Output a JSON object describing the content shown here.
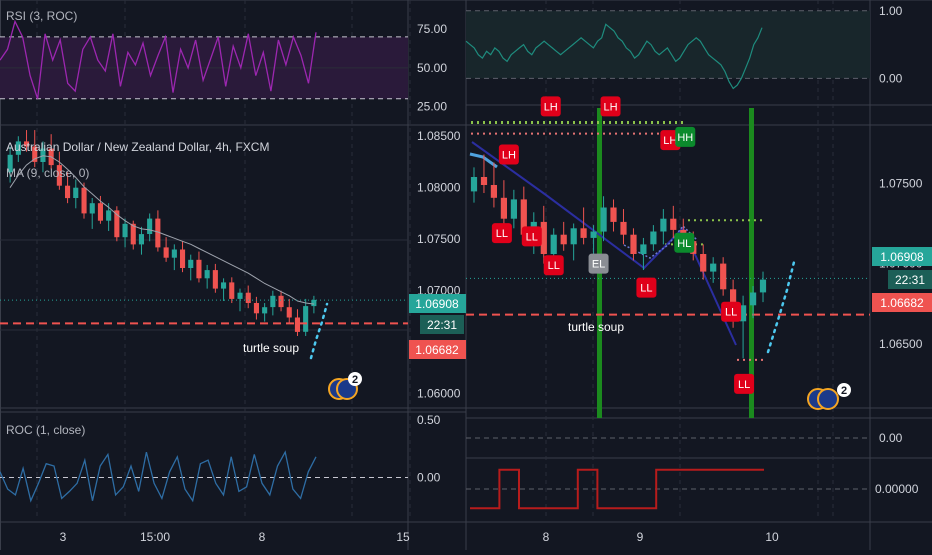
{
  "colors": {
    "bg": "#131722",
    "grid": "#2a2e39",
    "divider": "#3a3e4a",
    "bull": "#26a69a",
    "bear": "#ef5350",
    "text": "#b2b5be",
    "axis_text": "#d1d4dc",
    "rsi": "#9c27b0",
    "rsi_fill": "#2a1a3a",
    "roc": "#2e6da4",
    "price_tag": "#26a69a",
    "time_tag": "#1c5f57",
    "level_tag": "#ef5350",
    "ma": "#9ea3ad",
    "label_red": "#e0001a",
    "label_green": "#0b8a2c",
    "label_gray": "#8a8d94",
    "sky": "#4dc9f0",
    "trend": "#2b2ea0",
    "osc": "#b71c1c",
    "sig": "#26a69a",
    "mark_green": "#1b8a1e",
    "flag": "#f5a623"
  },
  "left": {
    "rsi": {
      "title": "RSI (3, ROC)",
      "ticks": [
        "75.00",
        "50.00",
        "25.00"
      ],
      "tick_values": [
        75,
        50,
        25
      ],
      "ylim": [
        15,
        90
      ],
      "band": [
        30,
        70
      ],
      "values": [
        55,
        62,
        80,
        70,
        45,
        30,
        72,
        55,
        68,
        40,
        35,
        62,
        70,
        55,
        48,
        72,
        38,
        60,
        52,
        66,
        45,
        58,
        70,
        34,
        62,
        50,
        68,
        42,
        56,
        70,
        38,
        64,
        50,
        72,
        45,
        60,
        35,
        68,
        52,
        70,
        58,
        40,
        73
      ]
    },
    "main": {
      "title": "Australian Dollar / New Zealand Dollar, 4h, FXCM",
      "ma_title": "MA (9, close, 0)",
      "ticks": [
        "1.08500",
        "1.08000",
        "1.07500",
        "1.07000",
        "1.06000"
      ],
      "tick_values": [
        1.085,
        1.08,
        1.075,
        1.07,
        1.06
      ],
      "ylim": [
        1.0588,
        1.0858
      ],
      "price_tag": "1.06908",
      "price_value": 1.06908,
      "time_tag": "22:31",
      "level_tag": "1.06682",
      "level_value": 1.06682,
      "annotation": "turtle soup",
      "badge": "2",
      "candles": [
        [
          1.0815,
          1.084,
          1.0805,
          1.0832
        ],
        [
          1.0832,
          1.085,
          1.0825,
          1.0845
        ],
        [
          1.0845,
          1.0856,
          1.0835,
          1.084
        ],
        [
          1.084,
          1.0856,
          1.082,
          1.0825
        ],
        [
          1.0825,
          1.0845,
          1.0815,
          1.0838
        ],
        [
          1.0838,
          1.0852,
          1.0818,
          1.0822
        ],
        [
          1.0822,
          1.0835,
          1.0798,
          1.0802
        ],
        [
          1.0802,
          1.0815,
          1.0785,
          1.079
        ],
        [
          1.079,
          1.0808,
          1.078,
          1.08
        ],
        [
          1.08,
          1.0805,
          1.077,
          1.0775
        ],
        [
          1.0775,
          1.079,
          1.076,
          1.0785
        ],
        [
          1.0785,
          1.0792,
          1.0765,
          1.0768
        ],
        [
          1.0768,
          1.0785,
          1.0758,
          1.0778
        ],
        [
          1.0778,
          1.0782,
          1.0748,
          1.0752
        ],
        [
          1.0752,
          1.077,
          1.0742,
          1.0765
        ],
        [
          1.0765,
          1.0768,
          1.074,
          1.0745
        ],
        [
          1.0745,
          1.0762,
          1.0735,
          1.0755
        ],
        [
          1.0755,
          1.0775,
          1.0748,
          1.077
        ],
        [
          1.077,
          1.0778,
          1.0738,
          1.0742
        ],
        [
          1.0742,
          1.0752,
          1.0728,
          1.0732
        ],
        [
          1.0732,
          1.0745,
          1.072,
          1.074
        ],
        [
          1.074,
          1.0748,
          1.0718,
          1.0722
        ],
        [
          1.0722,
          1.0735,
          1.071,
          1.073
        ],
        [
          1.073,
          1.0738,
          1.0708,
          1.0712
        ],
        [
          1.0712,
          1.0725,
          1.0702,
          1.072
        ],
        [
          1.072,
          1.0726,
          1.0698,
          1.0702
        ],
        [
          1.0702,
          1.0712,
          1.069,
          1.0708
        ],
        [
          1.0708,
          1.0713,
          1.0688,
          1.0692
        ],
        [
          1.0692,
          1.0702,
          1.068,
          1.0698
        ],
        [
          1.0698,
          1.0705,
          1.0683,
          1.0688
        ],
        [
          1.0688,
          1.0694,
          1.0672,
          1.0678
        ],
        [
          1.0678,
          1.0688,
          1.067,
          1.0684
        ],
        [
          1.0684,
          1.07,
          1.0676,
          1.0695
        ],
        [
          1.0695,
          1.07,
          1.068,
          1.0684
        ],
        [
          1.0684,
          1.0692,
          1.0668,
          1.0674
        ],
        [
          1.0674,
          1.0682,
          1.0656,
          1.066
        ],
        [
          1.066,
          1.0692,
          1.0656,
          1.0685
        ],
        [
          1.0685,
          1.0695,
          1.0678,
          1.0691
        ]
      ],
      "ma": [
        1.08,
        1.0812,
        1.0822,
        1.0828,
        1.0831,
        1.083,
        1.0825,
        1.0818,
        1.081,
        1.0801,
        1.0794,
        1.0787,
        1.0781,
        1.0774,
        1.0768,
        1.0763,
        1.076,
        1.0759,
        1.0757,
        1.0754,
        1.0751,
        1.0748,
        1.0745,
        1.0741,
        1.0737,
        1.0733,
        1.0729,
        1.0725,
        1.0721,
        1.0717,
        1.0712,
        1.0707,
        1.0703,
        1.0699,
        1.0695,
        1.069,
        1.0688,
        1.0687
      ]
    },
    "roc": {
      "title": "ROC (1, close)",
      "ticks": [
        "0.50",
        "0.00"
      ],
      "tick_values": [
        0.5,
        0.0
      ],
      "ylim": [
        -0.35,
        0.55
      ],
      "values": [
        0.05,
        -0.1,
        -0.15,
        0.08,
        -0.2,
        -0.05,
        0.12,
        0.1,
        -0.18,
        -0.12,
        -0.05,
        0.15,
        -0.2,
        0.1,
        0.2,
        -0.15,
        -0.08,
        0.1,
        -0.12,
        0.22,
        -0.05,
        -0.18,
        0.05,
        0.18,
        -0.1,
        -0.2,
        0.12,
        0.15,
        -0.05,
        -0.15,
        0.18,
        -0.12,
        -0.08,
        0.2,
        -0.05,
        -0.15,
        0.1,
        0.22,
        -0.1,
        -0.18,
        0.05,
        0.18
      ]
    },
    "x_labels": [
      "3",
      "15:00",
      "8",
      "15"
    ]
  },
  "right": {
    "osc_top": {
      "ticks": [
        "1.00",
        "0.00"
      ],
      "tick_values": [
        1.0,
        0.0
      ],
      "ylim": [
        -0.35,
        1.1
      ],
      "values": [
        0.55,
        0.5,
        0.45,
        0.35,
        0.3,
        0.4,
        0.35,
        0.45,
        0.4,
        0.3,
        0.25,
        0.35,
        0.4,
        0.45,
        0.5,
        0.4,
        0.35,
        0.45,
        0.5,
        0.55,
        0.5,
        0.45,
        0.4,
        0.35,
        0.4,
        0.45,
        0.5,
        0.55,
        0.6,
        0.55,
        0.5,
        0.45,
        0.55,
        0.6,
        0.8,
        0.75,
        0.7,
        0.6,
        0.55,
        0.45,
        0.4,
        0.3,
        0.35,
        0.45,
        0.55,
        0.5,
        0.4,
        0.35,
        0.4,
        0.45,
        0.35,
        0.25,
        0.3,
        0.4,
        0.5,
        0.55,
        0.6,
        0.55,
        0.45,
        0.35,
        0.3,
        0.25,
        0.2,
        0.1,
        -0.05,
        -0.15,
        -0.1,
        0.0,
        0.15,
        0.3,
        0.5,
        0.6,
        0.75
      ]
    },
    "main": {
      "ticks": [
        "1.07500",
        "1.07000",
        "1.06500"
      ],
      "tick_values": [
        1.075,
        1.07,
        1.065
      ],
      "ylim": [
        1.0605,
        1.0797
      ],
      "price_tag": "1.06908",
      "price_value": 1.06908,
      "time_tag": "22:31",
      "level_tag": "1.06682",
      "level_value": 1.06682,
      "annotation": "turtle soup",
      "badge": "2",
      "resistance_value": 1.0788,
      "upper_dotted_value": 1.0781,
      "swing_high_value": 1.0712,
      "swing_low_value": 1.0727,
      "bottom_value": 1.064,
      "labels": [
        {
          "t": "LH",
          "kind": "red",
          "x": 3.5,
          "y": 1.0768
        },
        {
          "t": "LH",
          "kind": "red",
          "x": 7.7,
          "y": 1.0798
        },
        {
          "t": "LH",
          "kind": "red",
          "x": 13.7,
          "y": 1.0798
        },
        {
          "t": "LH",
          "kind": "red",
          "x": 19.7,
          "y": 1.0777
        },
        {
          "t": "HH",
          "kind": "green",
          "x": 21.2,
          "y": 1.0779
        },
        {
          "t": "LL",
          "kind": "red",
          "x": 2.8,
          "y": 1.0719
        },
        {
          "t": "LL",
          "kind": "red",
          "x": 5.8,
          "y": 1.0717
        },
        {
          "t": "LL",
          "kind": "red",
          "x": 8.0,
          "y": 1.0699
        },
        {
          "t": "EL",
          "kind": "gray",
          "x": 12.5,
          "y": 1.07
        },
        {
          "t": "LL",
          "kind": "red",
          "x": 17.3,
          "y": 1.0685
        },
        {
          "t": "HL",
          "kind": "green",
          "x": 21.1,
          "y": 1.0713
        },
        {
          "t": "LL",
          "kind": "red",
          "x": 25.8,
          "y": 1.067
        },
        {
          "t": "LL",
          "kind": "red",
          "x": 27.1,
          "y": 1.0625
        }
      ],
      "candles": [
        [
          1.0745,
          1.076,
          1.0738,
          1.0754
        ],
        [
          1.0754,
          1.0768,
          1.0744,
          1.0749
        ],
        [
          1.0749,
          1.0763,
          1.0735,
          1.0741
        ],
        [
          1.0741,
          1.0752,
          1.0722,
          1.0728
        ],
        [
          1.0728,
          1.0746,
          1.0722,
          1.074
        ],
        [
          1.074,
          1.0748,
          1.0712,
          1.0718
        ],
        [
          1.0718,
          1.0732,
          1.0706,
          1.0726
        ],
        [
          1.0726,
          1.0736,
          1.07,
          1.0706
        ],
        [
          1.0706,
          1.0722,
          1.07,
          1.0718
        ],
        [
          1.0718,
          1.0726,
          1.0708,
          1.0712
        ],
        [
          1.0712,
          1.0725,
          1.0702,
          1.0722
        ],
        [
          1.0722,
          1.0735,
          1.0712,
          1.0716
        ],
        [
          1.0716,
          1.0724,
          1.0702,
          1.072
        ],
        [
          1.072,
          1.0742,
          1.0714,
          1.0735
        ],
        [
          1.0735,
          1.074,
          1.072,
          1.0726
        ],
        [
          1.0726,
          1.0734,
          1.0712,
          1.0718
        ],
        [
          1.0718,
          1.0722,
          1.0702,
          1.0706
        ],
        [
          1.0706,
          1.0716,
          1.0696,
          1.0712
        ],
        [
          1.0712,
          1.0724,
          1.0708,
          1.072
        ],
        [
          1.072,
          1.0734,
          1.0712,
          1.0728
        ],
        [
          1.0728,
          1.0736,
          1.0716,
          1.0721
        ],
        [
          1.0721,
          1.0728,
          1.0708,
          1.0714
        ],
        [
          1.0714,
          1.072,
          1.0702,
          1.0706
        ],
        [
          1.0706,
          1.0712,
          1.069,
          1.0695
        ],
        [
          1.0695,
          1.0704,
          1.0688,
          1.07
        ],
        [
          1.07,
          1.0704,
          1.068,
          1.0684
        ],
        [
          1.0684,
          1.069,
          1.066,
          1.0664
        ],
        [
          1.0664,
          1.068,
          1.0641,
          1.0674
        ],
        [
          1.0674,
          1.0686,
          1.0666,
          1.0682
        ],
        [
          1.0682,
          1.0695,
          1.0676,
          1.069
        ]
      ]
    },
    "sig": {
      "ticks": [
        "0.00"
      ],
      "tick_values": [
        0.0
      ],
      "ylim": [
        -0.6,
        0.6
      ],
      "values": [
        -0.25,
        -0.25,
        -0.25,
        0.25,
        0.25,
        -0.25,
        -0.25,
        -0.25,
        -0.25,
        -0.25,
        -0.25,
        0.25,
        0.25,
        -0.25,
        -0.25,
        -0.25,
        -0.25,
        -0.25,
        -0.25,
        0.25,
        0.25,
        0.25,
        0.25,
        0.25,
        0.25,
        0.25,
        0.25,
        0.25,
        0.25,
        0.25
      ]
    },
    "osc_bottom": {
      "ticks": [
        "0.00000"
      ],
      "tick_values": [
        0.0
      ],
      "ylim": [
        -0.6,
        0.6
      ],
      "values": [
        -0.4,
        -0.4,
        -0.4,
        0.4,
        0.4,
        -0.4,
        -0.4,
        -0.4,
        -0.4,
        -0.4,
        -0.4,
        0.4,
        0.4,
        -0.4,
        -0.4,
        -0.4,
        -0.4,
        -0.4,
        -0.4,
        0.4,
        0.4,
        0.4,
        0.4,
        0.4,
        0.4,
        0.4,
        0.4,
        0.4,
        0.4,
        0.4
      ]
    },
    "x_labels": [
      "8",
      "9",
      "10"
    ]
  }
}
